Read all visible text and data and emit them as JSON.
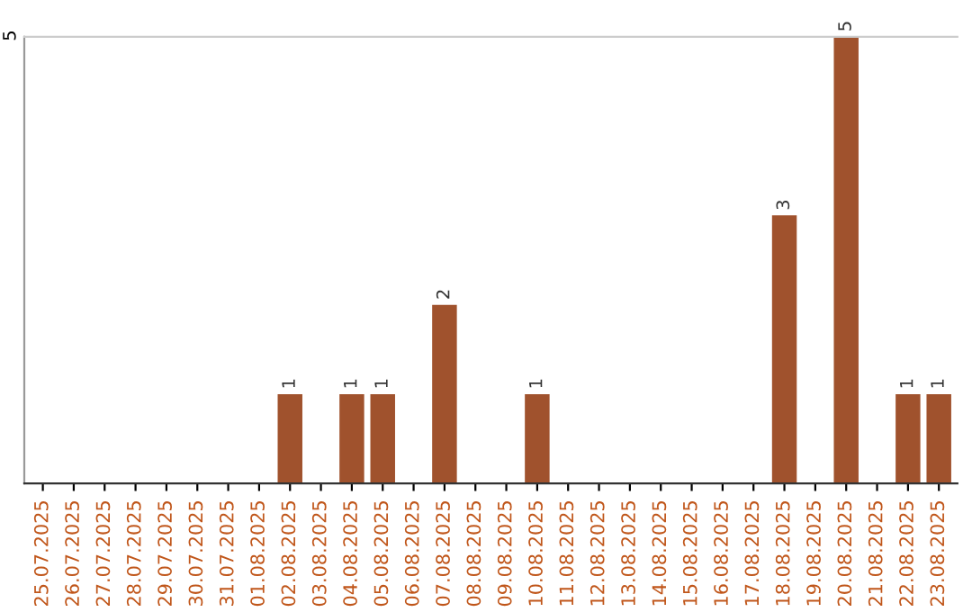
{
  "chart_data": {
    "type": "bar",
    "categories": [
      "25.07.2025",
      "26.07.2025",
      "27.07.2025",
      "28.07.2025",
      "29.07.2025",
      "30.07.2025",
      "31.07.2025",
      "01.08.2025",
      "02.08.2025",
      "03.08.2025",
      "04.08.2025",
      "05.08.2025",
      "06.08.2025",
      "07.08.2025",
      "08.08.2025",
      "09.08.2025",
      "10.08.2025",
      "11.08.2025",
      "12.08.2025",
      "13.08.2025",
      "14.08.2025",
      "15.08.2025",
      "16.08.2025",
      "17.08.2025",
      "18.08.2025",
      "19.08.2025",
      "20.08.2025",
      "21.08.2025",
      "22.08.2025",
      "23.08.2025"
    ],
    "values": [
      0,
      0,
      0,
      0,
      0,
      0,
      0,
      0,
      1,
      0,
      1,
      1,
      0,
      2,
      0,
      0,
      1,
      0,
      0,
      0,
      0,
      0,
      0,
      0,
      3,
      0,
      5,
      0,
      1,
      1
    ],
    "value_labels": [
      null,
      null,
      null,
      null,
      null,
      null,
      null,
      null,
      "1",
      null,
      "1",
      "1",
      null,
      "2",
      null,
      null,
      "1",
      null,
      null,
      null,
      null,
      null,
      null,
      null,
      "3",
      null,
      "5",
      null,
      "1",
      "1"
    ],
    "color": "#a0522d",
    "ylim": [
      0,
      5
    ],
    "yticks": [
      5
    ]
  }
}
